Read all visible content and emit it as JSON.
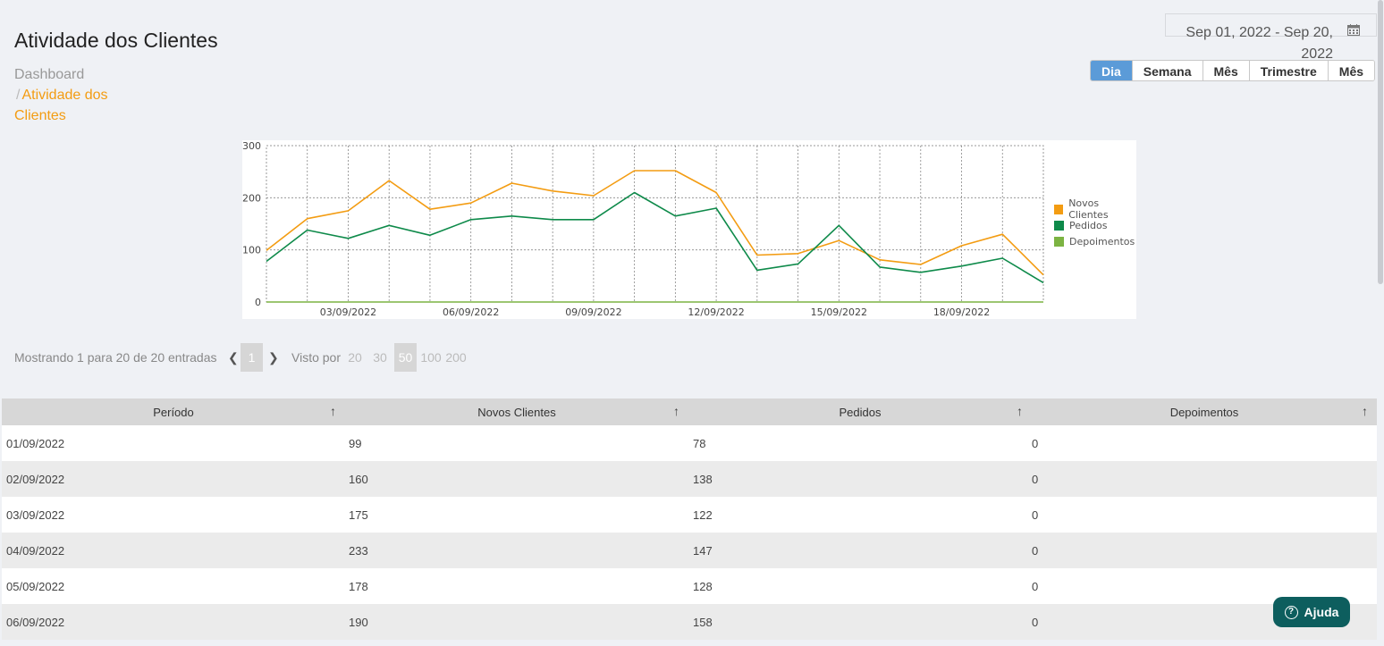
{
  "page": {
    "title": "Atividade dos Clientes",
    "breadcrumb": {
      "home": "Dashboard",
      "separator": "/",
      "current": "Atividade dos Clientes"
    }
  },
  "date_range": {
    "value": "Sep 01, 2022 - Sep 20, 2022",
    "icon": "calendar-icon"
  },
  "period_buttons": [
    {
      "label": "Dia",
      "active": true
    },
    {
      "label": "Semana",
      "active": false
    },
    {
      "label": "Mês",
      "active": false
    },
    {
      "label": "Trimestre",
      "active": false
    },
    {
      "label": "Mês",
      "active": false
    }
  ],
  "colors": {
    "novos_clientes": "#f39c12",
    "pedidos": "#0e8a4a",
    "depoimentos": "#7cb342",
    "accent": "#5b9bd8",
    "help": "#0d5e5e"
  },
  "chart_data": {
    "type": "line",
    "title": "",
    "xlabel": "",
    "ylabel": "",
    "ylim": [
      0,
      300
    ],
    "yticks": [
      "0",
      "100",
      "200",
      "300"
    ],
    "xtick_labels": [
      "03/09/2022",
      "06/09/2022",
      "09/09/2022",
      "12/09/2022",
      "15/09/2022",
      "18/09/2022"
    ],
    "x": [
      "01/09/2022",
      "02/09/2022",
      "03/09/2022",
      "04/09/2022",
      "05/09/2022",
      "06/09/2022",
      "07/09/2022",
      "08/09/2022",
      "09/09/2022",
      "10/09/2022",
      "11/09/2022",
      "12/09/2022",
      "13/09/2022",
      "14/09/2022",
      "15/09/2022",
      "16/09/2022",
      "17/09/2022",
      "18/09/2022",
      "19/09/2022",
      "20/09/2022"
    ],
    "grid": true,
    "legend_position": "right",
    "series": [
      {
        "name": "Novos Clientes",
        "color": "#f39c12",
        "values": [
          99,
          160,
          175,
          233,
          178,
          190,
          228,
          213,
          204,
          252,
          252,
          210,
          90,
          93,
          118,
          81,
          72,
          108,
          130,
          52
        ]
      },
      {
        "name": "Pedidos",
        "color": "#0e8a4a",
        "values": [
          78,
          138,
          122,
          147,
          128,
          158,
          165,
          158,
          158,
          210,
          165,
          180,
          61,
          73,
          147,
          67,
          57,
          69,
          84,
          37
        ]
      },
      {
        "name": "Depoimentos",
        "color": "#7cb342",
        "values": [
          0,
          0,
          0,
          0,
          0,
          0,
          0,
          0,
          0,
          0,
          0,
          0,
          0,
          0,
          0,
          0,
          0,
          0,
          0,
          0
        ]
      }
    ]
  },
  "pagination": {
    "info": "Mostrando 1 para 20 de 20 entradas",
    "current_page": "1",
    "per_page_label": "Visto por",
    "per_page_options": [
      "20",
      "30",
      "50",
      "100",
      "200"
    ],
    "per_page_selected": "50"
  },
  "table": {
    "columns": [
      "Período",
      "Novos Clientes",
      "Pedidos",
      "Depoimentos"
    ],
    "sort_icon": "arrow-up-icon",
    "rows": [
      [
        "01/09/2022",
        "99",
        "78",
        "0"
      ],
      [
        "02/09/2022",
        "160",
        "138",
        "0"
      ],
      [
        "03/09/2022",
        "175",
        "122",
        "0"
      ],
      [
        "04/09/2022",
        "233",
        "147",
        "0"
      ],
      [
        "05/09/2022",
        "178",
        "128",
        "0"
      ],
      [
        "06/09/2022",
        "190",
        "158",
        "0"
      ]
    ]
  },
  "help": {
    "label": "Ajuda",
    "icon": "question-circle-icon"
  }
}
